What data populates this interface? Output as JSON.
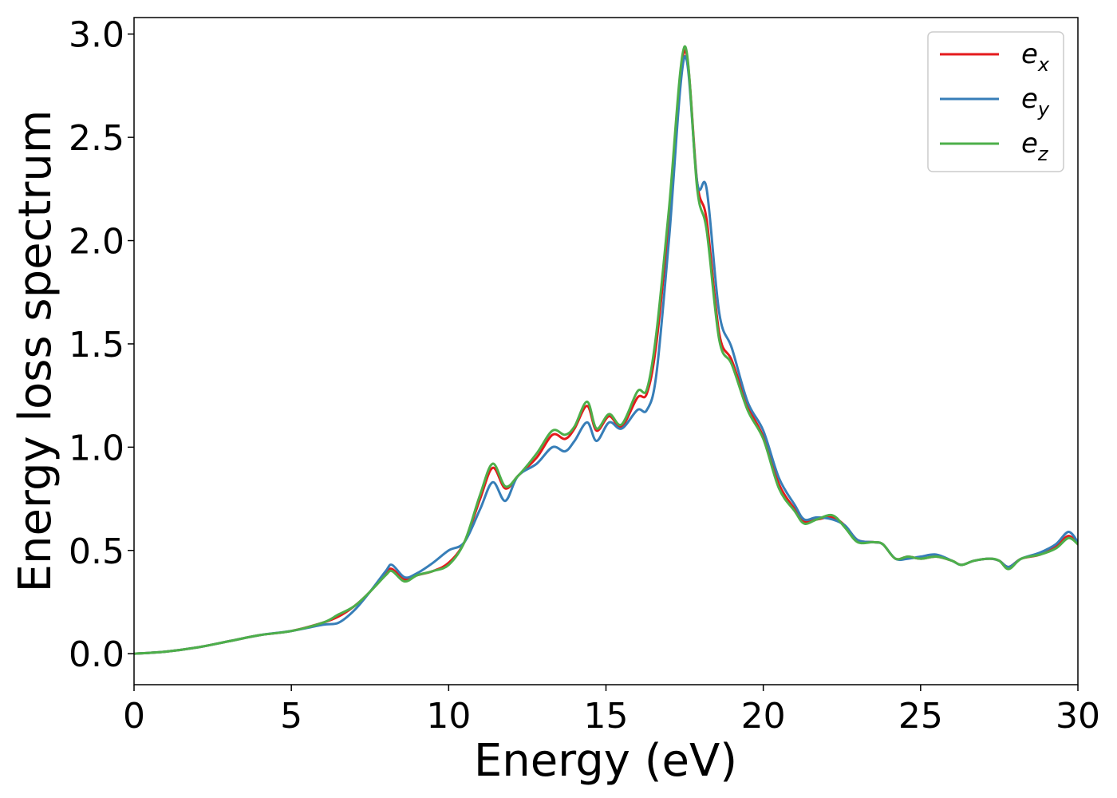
{
  "chart_data": {
    "type": "line",
    "xlabel": "Energy (eV)",
    "ylabel": "Energy loss spectrum",
    "xlim": [
      0,
      30
    ],
    "ylim": [
      -0.15,
      3.08
    ],
    "xticks": [
      0,
      5,
      10,
      15,
      20,
      25,
      30
    ],
    "xtick_labels": [
      "0",
      "5",
      "10",
      "15",
      "20",
      "25",
      "30"
    ],
    "yticks": [
      0.0,
      0.5,
      1.0,
      1.5,
      2.0,
      2.5,
      3.0
    ],
    "ytick_labels": [
      "0.0",
      "0.5",
      "1.0",
      "1.5",
      "2.0",
      "2.5",
      "3.0"
    ],
    "grid": false,
    "legend_position": "top-right",
    "series": [
      {
        "name": "e",
        "sub": "x",
        "color": "#e41a1c",
        "x": [
          0,
          1,
          2,
          3,
          4,
          5,
          6,
          6.5,
          7,
          7.5,
          8,
          8.2,
          8.6,
          9,
          9.5,
          10,
          10.5,
          11,
          11.4,
          11.8,
          12.2,
          12.8,
          13.3,
          13.7,
          14,
          14.4,
          14.7,
          15.1,
          15.5,
          16,
          16.3,
          16.6,
          17,
          17.5,
          17.9,
          18.2,
          18.6,
          19,
          19.5,
          20,
          20.5,
          21,
          21.3,
          21.7,
          22.2,
          22.6,
          23,
          23.5,
          23.8,
          24.2,
          24.6,
          25,
          25.5,
          26,
          26.3,
          26.7,
          27.2,
          27.5,
          27.8,
          28.2,
          28.8,
          29.3,
          29.7,
          30
        ],
        "y": [
          0,
          0.01,
          0.03,
          0.06,
          0.09,
          0.11,
          0.15,
          0.18,
          0.23,
          0.3,
          0.39,
          0.41,
          0.36,
          0.38,
          0.4,
          0.44,
          0.54,
          0.75,
          0.9,
          0.8,
          0.86,
          0.95,
          1.06,
          1.04,
          1.09,
          1.2,
          1.08,
          1.15,
          1.1,
          1.24,
          1.26,
          1.5,
          2.1,
          2.92,
          2.28,
          2.1,
          1.55,
          1.42,
          1.2,
          1.05,
          0.82,
          0.7,
          0.64,
          0.65,
          0.66,
          0.62,
          0.55,
          0.54,
          0.53,
          0.46,
          0.47,
          0.46,
          0.47,
          0.45,
          0.43,
          0.45,
          0.46,
          0.45,
          0.42,
          0.46,
          0.48,
          0.52,
          0.57,
          0.53
        ]
      },
      {
        "name": "e",
        "sub": "y",
        "color": "#377eb8",
        "x": [
          0,
          1,
          2,
          3,
          4,
          5,
          6,
          6.5,
          7,
          7.5,
          8,
          8.2,
          8.6,
          9,
          9.5,
          10,
          10.5,
          11,
          11.4,
          11.8,
          12.2,
          12.8,
          13.3,
          13.7,
          14,
          14.4,
          14.7,
          15.1,
          15.5,
          16,
          16.3,
          16.6,
          17,
          17.5,
          17.9,
          18.2,
          18.6,
          19,
          19.5,
          20,
          20.5,
          21,
          21.3,
          21.7,
          22.2,
          22.6,
          23,
          23.5,
          23.8,
          24.2,
          24.6,
          25,
          25.5,
          26,
          26.3,
          26.7,
          27.2,
          27.5,
          27.8,
          28.2,
          28.8,
          29.3,
          29.7,
          30
        ],
        "y": [
          0,
          0.01,
          0.03,
          0.06,
          0.09,
          0.11,
          0.14,
          0.15,
          0.21,
          0.3,
          0.4,
          0.43,
          0.37,
          0.39,
          0.44,
          0.5,
          0.54,
          0.7,
          0.83,
          0.74,
          0.86,
          0.92,
          1.0,
          0.98,
          1.03,
          1.12,
          1.03,
          1.12,
          1.09,
          1.18,
          1.18,
          1.35,
          2.0,
          2.89,
          2.28,
          2.25,
          1.65,
          1.48,
          1.22,
          1.08,
          0.85,
          0.72,
          0.65,
          0.66,
          0.65,
          0.62,
          0.55,
          0.54,
          0.53,
          0.46,
          0.46,
          0.47,
          0.48,
          0.45,
          0.43,
          0.45,
          0.46,
          0.45,
          0.42,
          0.46,
          0.49,
          0.53,
          0.59,
          0.54
        ]
      },
      {
        "name": "e",
        "sub": "z",
        "color": "#4daf4a",
        "x": [
          0,
          1,
          2,
          3,
          4,
          5,
          6,
          6.5,
          7,
          7.5,
          8,
          8.2,
          8.6,
          9,
          9.5,
          10,
          10.5,
          11,
          11.4,
          11.8,
          12.2,
          12.8,
          13.3,
          13.7,
          14,
          14.4,
          14.7,
          15.1,
          15.5,
          16,
          16.3,
          16.6,
          17,
          17.5,
          17.9,
          18.2,
          18.6,
          19,
          19.5,
          20,
          20.5,
          21,
          21.3,
          21.7,
          22.2,
          22.6,
          23,
          23.5,
          23.8,
          24.2,
          24.6,
          25,
          25.5,
          26,
          26.3,
          26.7,
          27.2,
          27.5,
          27.8,
          28.2,
          28.8,
          29.3,
          29.7,
          30
        ],
        "y": [
          0,
          0.01,
          0.03,
          0.06,
          0.09,
          0.11,
          0.15,
          0.19,
          0.23,
          0.3,
          0.38,
          0.4,
          0.35,
          0.38,
          0.4,
          0.43,
          0.54,
          0.77,
          0.92,
          0.81,
          0.86,
          0.97,
          1.08,
          1.06,
          1.1,
          1.22,
          1.09,
          1.16,
          1.11,
          1.27,
          1.28,
          1.55,
          2.15,
          2.94,
          2.25,
          2.05,
          1.52,
          1.4,
          1.18,
          1.04,
          0.8,
          0.69,
          0.63,
          0.65,
          0.67,
          0.61,
          0.54,
          0.54,
          0.53,
          0.46,
          0.47,
          0.46,
          0.47,
          0.45,
          0.43,
          0.45,
          0.46,
          0.45,
          0.41,
          0.46,
          0.48,
          0.51,
          0.56,
          0.53
        ]
      }
    ]
  }
}
